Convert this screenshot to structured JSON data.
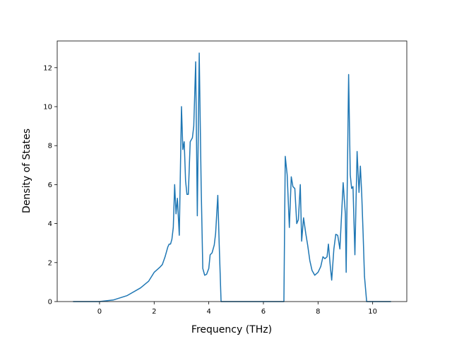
{
  "chart_data": {
    "type": "line",
    "xlabel": "Frequency (THz)",
    "ylabel": "Density of States",
    "x": [
      -0.97,
      0,
      0.5,
      1,
      1.5,
      1.8,
      2.0,
      2.2,
      2.3,
      2.4,
      2.5,
      2.55,
      2.6,
      2.65,
      2.7,
      2.75,
      2.8,
      2.85,
      2.92,
      3.0,
      3.05,
      3.1,
      3.15,
      3.2,
      3.25,
      3.32,
      3.4,
      3.45,
      3.52,
      3.58,
      3.65,
      3.72,
      3.78,
      3.85,
      3.92,
      4.0,
      4.05,
      4.12,
      4.2,
      4.25,
      4.33,
      4.38,
      4.45,
      6.75,
      6.8,
      6.87,
      6.95,
      7.02,
      7.08,
      7.15,
      7.22,
      7.28,
      7.35,
      7.4,
      7.47,
      7.55,
      7.62,
      7.7,
      7.78,
      7.88,
      8.0,
      8.1,
      8.18,
      8.25,
      8.33,
      8.38,
      8.45,
      8.5,
      8.58,
      8.65,
      8.72,
      8.8,
      8.92,
      9.0,
      9.03,
      9.12,
      9.18,
      9.23,
      9.28,
      9.35,
      9.43,
      9.5,
      9.55,
      9.6,
      9.65,
      9.7,
      9.78,
      10.67
    ],
    "series": [
      {
        "name": "DOS",
        "color": "#1f77b4",
        "values": [
          0,
          0,
          0.08,
          0.3,
          0.7,
          1.05,
          1.5,
          1.75,
          1.9,
          2.3,
          2.8,
          2.95,
          2.95,
          3.2,
          3.8,
          6.0,
          4.5,
          5.3,
          3.4,
          10.0,
          7.8,
          8.2,
          6.2,
          5.5,
          5.5,
          8.2,
          8.4,
          9.0,
          12.3,
          4.4,
          12.75,
          6.0,
          1.7,
          1.35,
          1.4,
          1.7,
          2.4,
          2.5,
          2.9,
          3.5,
          5.45,
          3.0,
          0,
          0,
          7.45,
          6.5,
          3.8,
          6.4,
          5.9,
          5.8,
          4.0,
          4.2,
          6.0,
          3.1,
          4.3,
          3.5,
          2.9,
          2.1,
          1.6,
          1.35,
          1.5,
          1.8,
          2.3,
          2.2,
          2.3,
          2.95,
          1.8,
          1.1,
          2.7,
          3.45,
          3.4,
          2.7,
          6.1,
          4.5,
          1.5,
          11.65,
          6.5,
          5.8,
          5.9,
          2.4,
          7.7,
          5.6,
          6.95,
          5.5,
          3.5,
          1.3,
          0,
          0
        ]
      }
    ],
    "xlim": [
      -1.55,
      11.25
    ],
    "ylim": [
      0,
      13.37
    ],
    "xticks": [
      0,
      2,
      4,
      6,
      8,
      10
    ],
    "yticks": [
      0,
      2,
      4,
      6,
      8,
      10,
      12
    ]
  }
}
